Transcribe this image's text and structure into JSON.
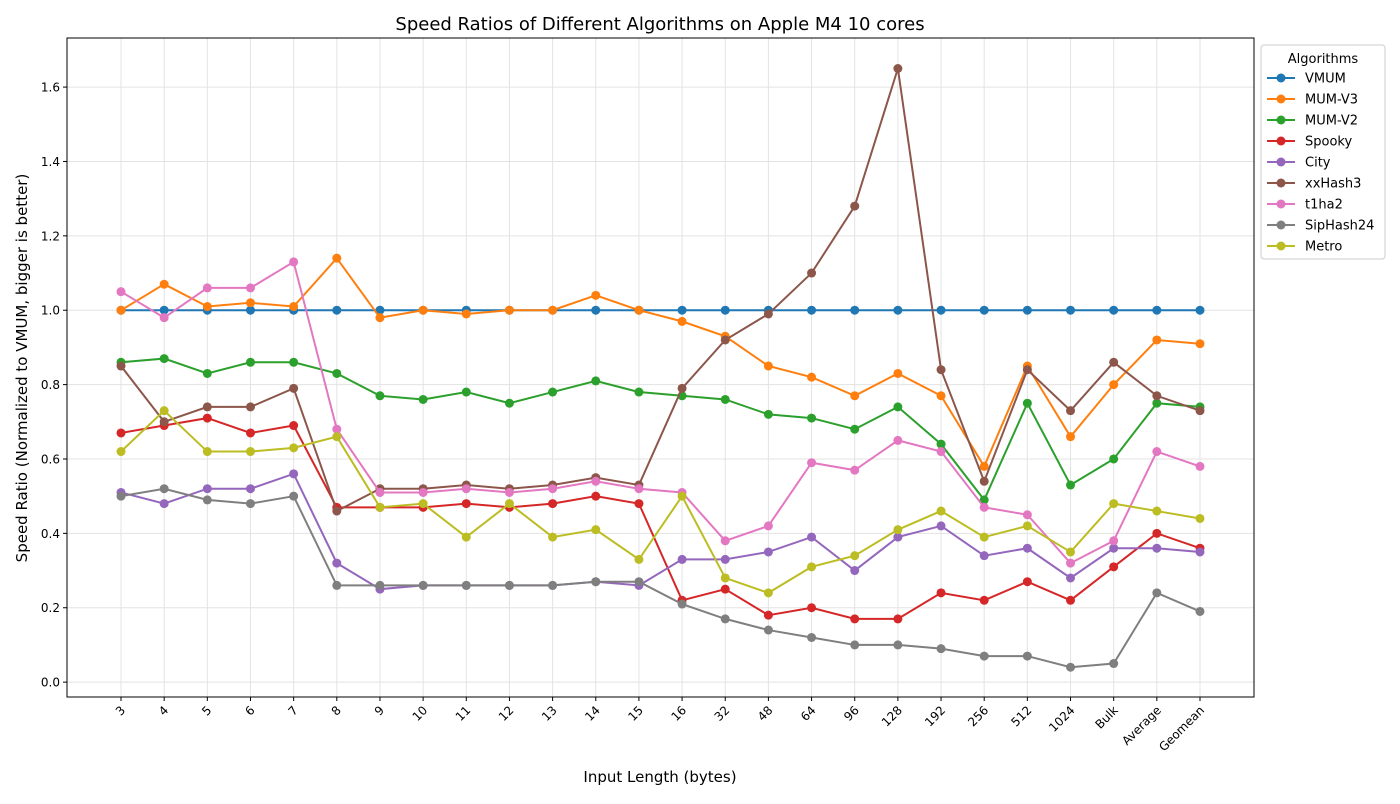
{
  "chart_data": {
    "type": "line",
    "title": "Speed Ratios of Different Algorithms on Apple M4 10 cores",
    "xlabel": "Input Length (bytes)",
    "ylabel": "Speed Ratio (Normalized to VMUM, bigger is better)",
    "ylim": [
      -0.04,
      1.732
    ],
    "yticks": [
      "0.0",
      "0.2",
      "0.4",
      "0.6",
      "0.8",
      "1.0",
      "1.2",
      "1.4",
      "1.6"
    ],
    "ytick_values": [
      0,
      0.2,
      0.4,
      0.6,
      0.8,
      1.0,
      1.2,
      1.4,
      1.6
    ],
    "grid": true,
    "legend_title": "Algorithms",
    "legend_position": "outside-top-right",
    "categories": [
      "3",
      "4",
      "5",
      "6",
      "7",
      "8",
      "9",
      "10",
      "11",
      "12",
      "13",
      "14",
      "15",
      "16",
      "32",
      "48",
      "64",
      "96",
      "128",
      "192",
      "256",
      "512",
      "1024",
      "Bulk",
      "Average",
      "Geomean"
    ],
    "series": [
      {
        "name": "VMUM",
        "color": "#1f77b4",
        "values": [
          1,
          1,
          1,
          1,
          1,
          1,
          1,
          1,
          1,
          1,
          1,
          1,
          1,
          1,
          1,
          1,
          1,
          1,
          1,
          1,
          1,
          1,
          1,
          1,
          1,
          1
        ]
      },
      {
        "name": "MUM-V3",
        "color": "#ff7f0e",
        "values": [
          1.0,
          1.07,
          1.01,
          1.02,
          1.01,
          1.14,
          0.98,
          1.0,
          0.99,
          1.0,
          1.0,
          1.04,
          1.0,
          0.97,
          0.93,
          0.85,
          0.82,
          0.77,
          0.83,
          0.77,
          0.58,
          0.85,
          0.66,
          0.8,
          0.92,
          0.91
        ]
      },
      {
        "name": "MUM-V2",
        "color": "#2ca02c",
        "values": [
          0.86,
          0.87,
          0.83,
          0.86,
          0.86,
          0.83,
          0.77,
          0.76,
          0.78,
          0.75,
          0.78,
          0.81,
          0.78,
          0.77,
          0.76,
          0.72,
          0.71,
          0.68,
          0.74,
          0.64,
          0.49,
          0.75,
          0.53,
          0.6,
          0.75,
          0.74
        ]
      },
      {
        "name": "Spooky",
        "color": "#d62728",
        "values": [
          0.67,
          0.69,
          0.71,
          0.67,
          0.69,
          0.47,
          0.47,
          0.47,
          0.48,
          0.47,
          0.48,
          0.5,
          0.48,
          0.22,
          0.25,
          0.18,
          0.2,
          0.17,
          0.17,
          0.24,
          0.22,
          0.27,
          0.22,
          0.31,
          0.4,
          0.36
        ]
      },
      {
        "name": "City",
        "color": "#9467bd",
        "values": [
          0.51,
          0.48,
          0.52,
          0.52,
          0.56,
          0.32,
          0.25,
          0.26,
          0.26,
          0.26,
          0.26,
          0.27,
          0.26,
          0.33,
          0.33,
          0.35,
          0.39,
          0.3,
          0.39,
          0.42,
          0.34,
          0.36,
          0.28,
          0.36,
          0.36,
          0.35
        ]
      },
      {
        "name": "xxHash3",
        "color": "#8c564b",
        "values": [
          0.85,
          0.7,
          0.74,
          0.74,
          0.79,
          0.46,
          0.52,
          0.52,
          0.53,
          0.52,
          0.53,
          0.55,
          0.53,
          0.79,
          0.92,
          0.99,
          1.1,
          1.28,
          1.65,
          0.84,
          0.54,
          0.84,
          0.73,
          0.86,
          0.77,
          0.73
        ]
      },
      {
        "name": "t1ha2",
        "color": "#e377c2",
        "values": [
          1.05,
          0.98,
          1.06,
          1.06,
          1.13,
          0.68,
          0.51,
          0.51,
          0.52,
          0.51,
          0.52,
          0.54,
          0.52,
          0.51,
          0.38,
          0.42,
          0.59,
          0.57,
          0.65,
          0.62,
          0.47,
          0.45,
          0.32,
          0.38,
          0.62,
          0.58
        ]
      },
      {
        "name": "SipHash24",
        "color": "#7f7f7f",
        "values": [
          0.5,
          0.52,
          0.49,
          0.48,
          0.5,
          0.26,
          0.26,
          0.26,
          0.26,
          0.26,
          0.26,
          0.27,
          0.27,
          0.21,
          0.17,
          0.14,
          0.12,
          0.1,
          0.1,
          0.09,
          0.07,
          0.07,
          0.04,
          0.05,
          0.24,
          0.19
        ]
      },
      {
        "name": "Metro",
        "color": "#bcbd22",
        "values": [
          0.62,
          0.73,
          0.62,
          0.62,
          0.63,
          0.66,
          0.47,
          0.48,
          0.39,
          0.48,
          0.39,
          0.41,
          0.33,
          0.5,
          0.28,
          0.24,
          0.31,
          0.34,
          0.41,
          0.46,
          0.39,
          0.42,
          0.35,
          0.48,
          0.46,
          0.44
        ]
      }
    ]
  }
}
